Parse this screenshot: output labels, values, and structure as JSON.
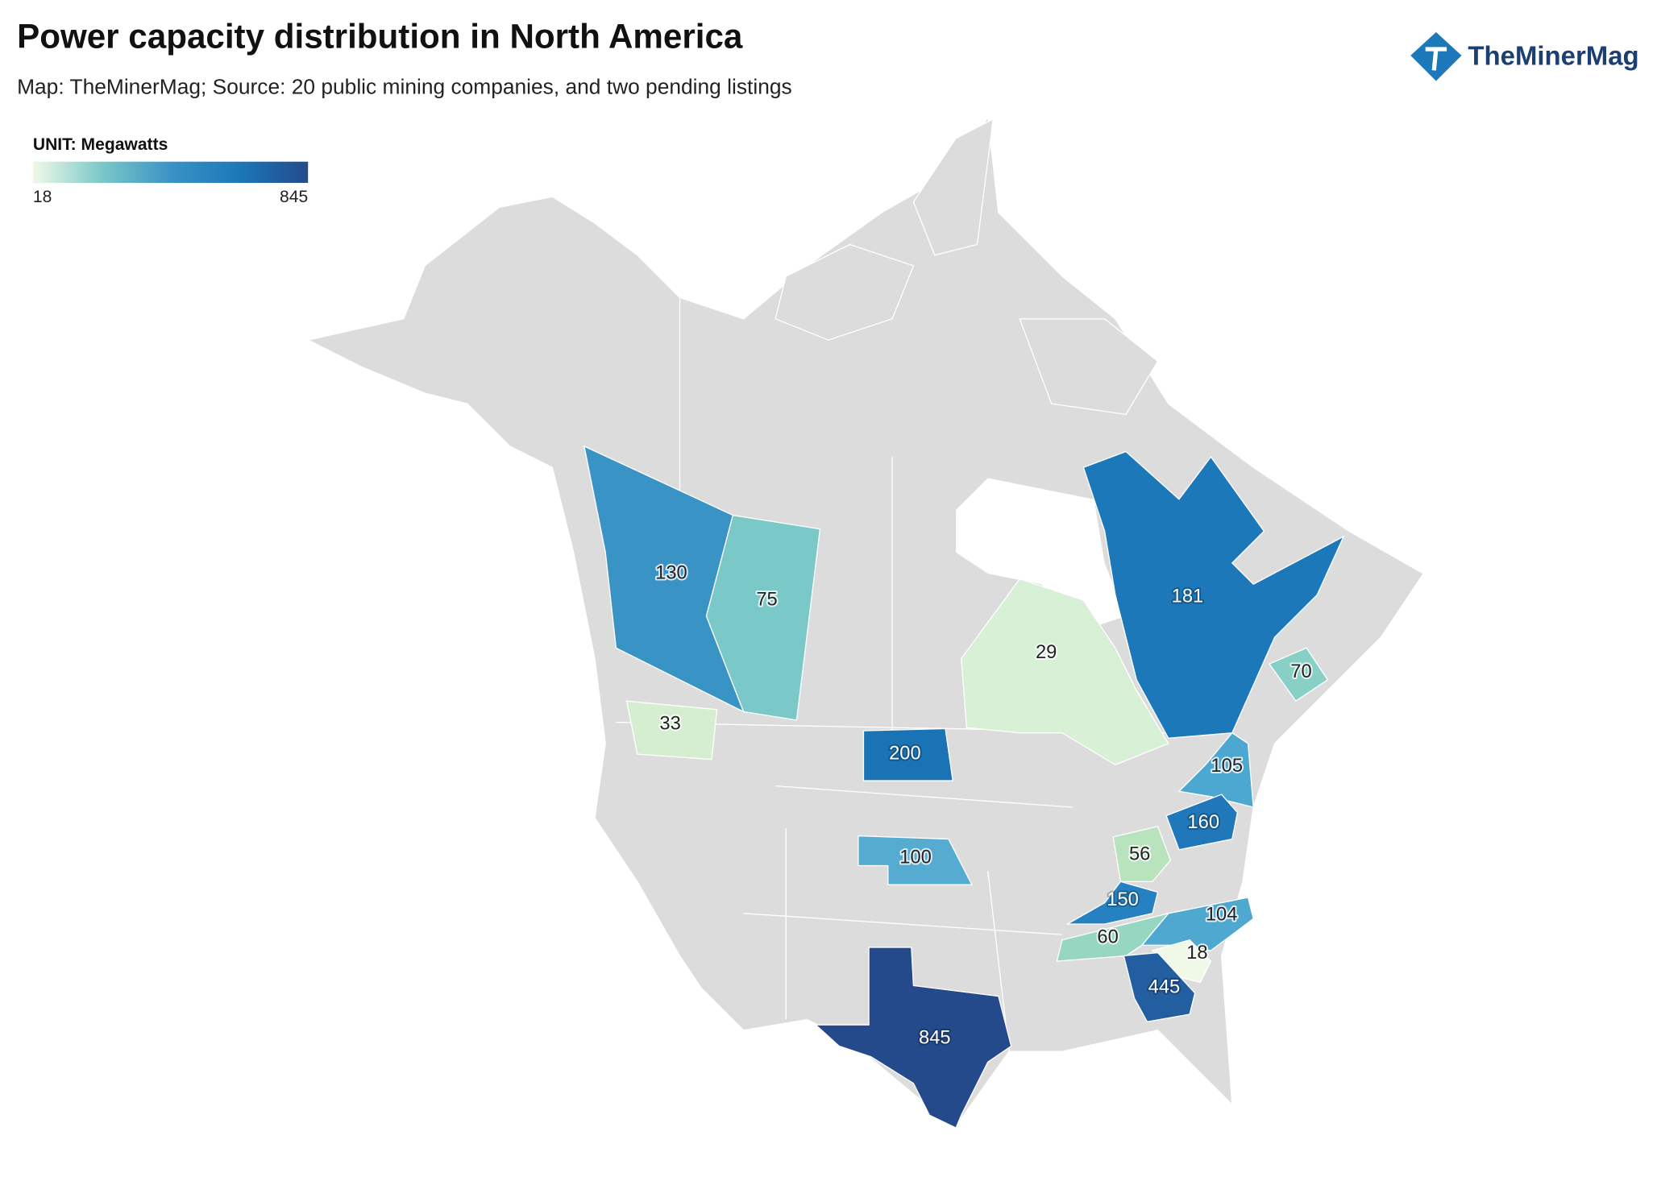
{
  "header": {
    "title": "Power capacity distribution in North America",
    "subtitle": "Map: TheMinerMag; Source: 20 public mining companies, and two pending listings",
    "logo": "TheMinerMag"
  },
  "legend": {
    "title": "UNIT: Megawatts",
    "min": 18,
    "max": 845,
    "colors": [
      "#f0f9e8",
      "#7bc8c8",
      "#3a93c5",
      "#1c78b8",
      "#254a8c"
    ]
  },
  "regions": [
    {
      "value": 130,
      "color": "#3a93c5"
    },
    {
      "value": 75,
      "color": "#7bc8c8"
    },
    {
      "value": 33,
      "color": "#d4eecf"
    },
    {
      "value": 181,
      "color": "#1c78b8"
    },
    {
      "value": 29,
      "color": "#d8f0d5"
    },
    {
      "value": 70,
      "color": "#88d0c6"
    },
    {
      "value": 200,
      "color": "#1a73b5"
    },
    {
      "value": 100,
      "color": "#56acd0"
    },
    {
      "value": 105,
      "color": "#4ca8d0"
    },
    {
      "value": 160,
      "color": "#2078bb"
    },
    {
      "value": 56,
      "color": "#b8e3bd"
    },
    {
      "value": 150,
      "color": "#2681c0"
    },
    {
      "value": 104,
      "color": "#4fa8d0"
    },
    {
      "value": 60,
      "color": "#97d6c0"
    },
    {
      "value": 18,
      "color": "#f0f9e8"
    },
    {
      "value": 445,
      "color": "#225ea0"
    },
    {
      "value": 845,
      "color": "#254a8c"
    }
  ]
}
